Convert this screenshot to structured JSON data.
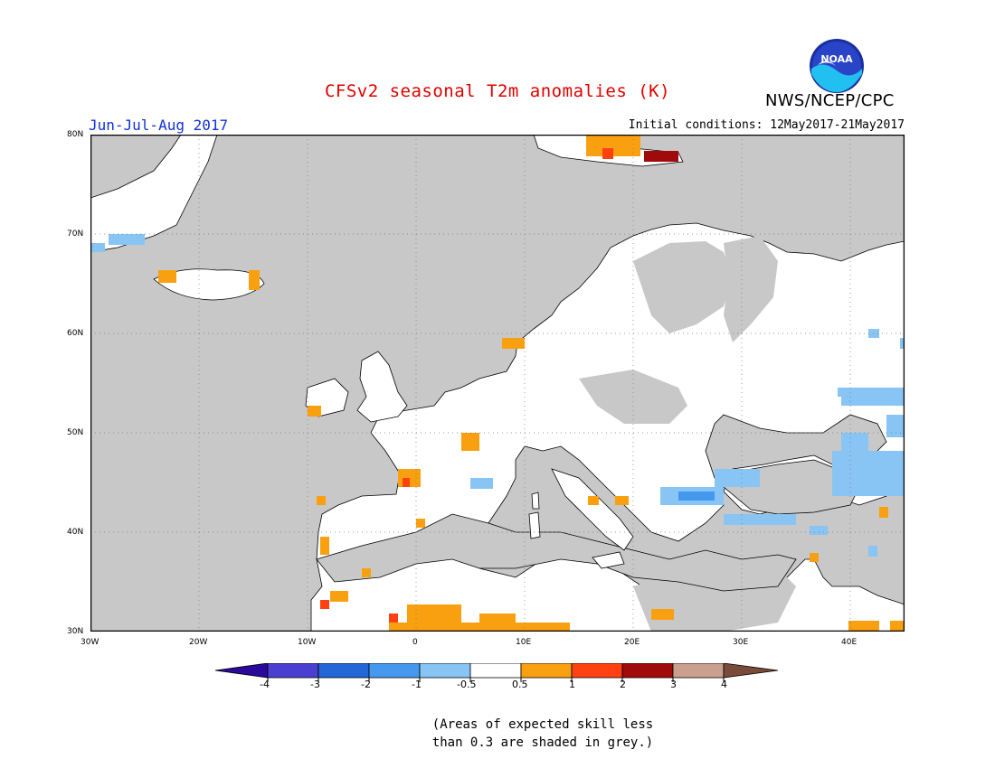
{
  "title": "CFSv2 seasonal T2m anomalies (K)",
  "agency": "NWS/NCEP/CPC",
  "logo_text": "NOAA",
  "season": "Jun-Jul-Aug 2017",
  "initial_conditions": "Initial conditions: 12May2017-21May2017",
  "map": {
    "region": "Europe",
    "lon_range": [
      -30,
      45
    ],
    "lat_range": [
      30,
      80
    ],
    "lon_ticks": [
      "30W",
      "20W",
      "10W",
      "0",
      "10E",
      "20E",
      "30E",
      "40E"
    ],
    "lat_ticks": [
      "80N",
      "70N",
      "60N",
      "50N",
      "40N",
      "30N"
    ],
    "colors": {
      "ocean_low_skill": "#c8c8c8",
      "land": "#ffffff",
      "coast": "#000000"
    }
  },
  "colorbar": {
    "labels": [
      "-4",
      "-3",
      "-2",
      "-1",
      "-0.5",
      "0.5",
      "1",
      "2",
      "3",
      "4"
    ],
    "colors": [
      "#2a0a9a",
      "#4a3fd0",
      "#2266d8",
      "#4499ee",
      "#88c4f4",
      "#ffffff",
      "#f9a010",
      "#ff4010",
      "#a00a0a",
      "#c9a090",
      "#7a4a3a"
    ]
  },
  "note": [
    "(Areas of expected skill less",
    "than 0.3 are shaded in grey.)"
  ]
}
